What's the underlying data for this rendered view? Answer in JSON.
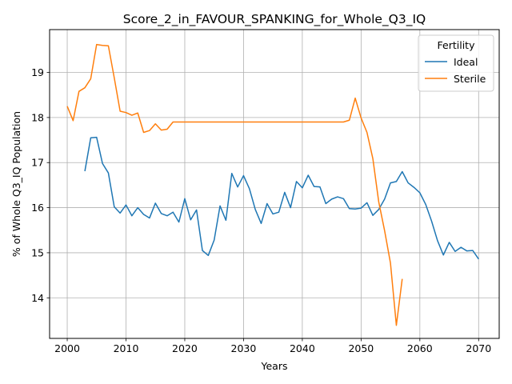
{
  "chart_data": {
    "type": "line",
    "title": "Score_2_in_FAVOUR_SPANKING_for_Whole_Q3_IQ",
    "xlabel": "Years",
    "ylabel": "% of Whole Q3_IQ Population",
    "xlim": [
      1997,
      2073.5
    ],
    "ylim": [
      13.1,
      19.95
    ],
    "xticks": [
      2000,
      2010,
      2020,
      2030,
      2040,
      2050,
      2060,
      2070
    ],
    "yticks": [
      14,
      15,
      16,
      17,
      18,
      19
    ],
    "grid": true,
    "legend": {
      "title": "Fertility",
      "placement": "top-right"
    },
    "series": [
      {
        "name": "Ideal",
        "color": "#1f77b4",
        "x": [
          2003,
          2004,
          2005,
          2006,
          2007,
          2008,
          2009,
          2010,
          2011,
          2012,
          2013,
          2014,
          2015,
          2016,
          2017,
          2018,
          2019,
          2020,
          2021,
          2022,
          2023,
          2024,
          2025,
          2026,
          2027,
          2028,
          2029,
          2030,
          2031,
          2032,
          2033,
          2034,
          2035,
          2036,
          2037,
          2038,
          2039,
          2040,
          2041,
          2042,
          2043,
          2044,
          2045,
          2046,
          2047,
          2048,
          2049,
          2050,
          2051,
          2052,
          2053,
          2054,
          2055,
          2056,
          2057,
          2058,
          2059,
          2060,
          2061,
          2062,
          2063,
          2064,
          2065,
          2066,
          2067,
          2068,
          2069,
          2070
        ],
        "y": [
          16.81,
          17.55,
          17.56,
          16.98,
          16.77,
          16.02,
          15.88,
          16.06,
          15.82,
          16.0,
          15.85,
          15.77,
          16.1,
          15.87,
          15.82,
          15.9,
          15.68,
          16.2,
          15.73,
          15.95,
          15.05,
          14.94,
          15.28,
          16.04,
          15.72,
          16.76,
          16.46,
          16.71,
          16.42,
          15.96,
          15.65,
          16.09,
          15.86,
          15.9,
          16.34,
          16.0,
          16.58,
          16.44,
          16.72,
          16.47,
          16.46,
          16.09,
          16.19,
          16.24,
          16.2,
          15.98,
          15.97,
          15.99,
          16.11,
          15.83,
          15.96,
          16.19,
          16.55,
          16.58,
          16.8,
          16.55,
          16.45,
          16.33,
          16.07,
          15.7,
          15.27,
          14.95,
          15.23,
          15.03,
          15.12,
          15.04,
          15.05,
          14.86
        ]
      },
      {
        "name": "Sterile",
        "color": "#ff7f0e",
        "x": [
          2000,
          2001,
          2002,
          2003,
          2004,
          2005,
          2006,
          2007,
          2008,
          2009,
          2010,
          2011,
          2012,
          2013,
          2014,
          2015,
          2016,
          2017,
          2018,
          2019,
          2020,
          2021,
          2022,
          2023,
          2024,
          2025,
          2026,
          2027,
          2028,
          2029,
          2030,
          2031,
          2032,
          2033,
          2034,
          2035,
          2036,
          2037,
          2038,
          2039,
          2040,
          2041,
          2042,
          2043,
          2044,
          2045,
          2046,
          2047,
          2048,
          2049,
          2050,
          2051,
          2052,
          2053,
          2054,
          2055,
          2056,
          2057
        ],
        "y": [
          18.25,
          17.93,
          18.58,
          18.66,
          18.86,
          19.62,
          19.6,
          19.59,
          18.88,
          18.14,
          18.11,
          18.05,
          18.1,
          17.67,
          17.71,
          17.86,
          17.72,
          17.74,
          17.9,
          17.9,
          17.9,
          17.9,
          17.9,
          17.9,
          17.9,
          17.9,
          17.9,
          17.9,
          17.9,
          17.9,
          17.9,
          17.9,
          17.9,
          17.9,
          17.9,
          17.9,
          17.9,
          17.9,
          17.9,
          17.9,
          17.9,
          17.9,
          17.9,
          17.9,
          17.9,
          17.9,
          17.9,
          17.9,
          17.94,
          18.43,
          17.99,
          17.67,
          17.09,
          16.13,
          15.49,
          14.77,
          13.39,
          14.42
        ]
      }
    ]
  }
}
